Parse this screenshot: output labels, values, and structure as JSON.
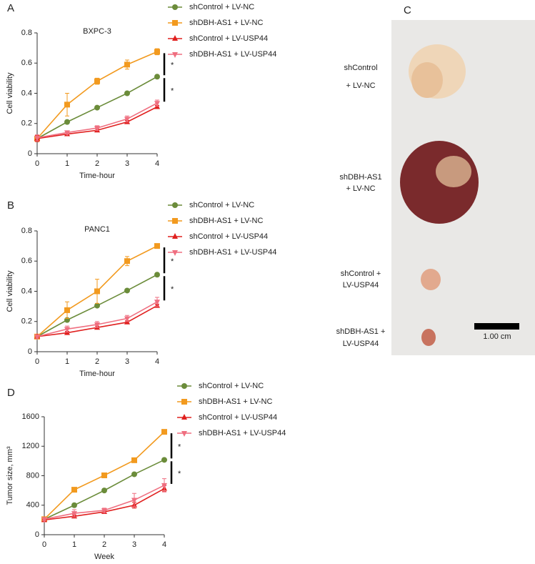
{
  "chart_data": [
    {
      "type": "line",
      "label": "A",
      "title": "BXPC-3",
      "xlabel": "Time-hour",
      "ylabel": "Cell viability",
      "x": [
        0,
        1,
        2,
        3,
        4
      ],
      "xlim": [
        0,
        4
      ],
      "xticks": [
        0,
        1,
        2,
        3,
        4
      ],
      "ylim": [
        0,
        0.8
      ],
      "yticks": [
        0,
        0.2,
        0.4,
        0.6,
        0.8
      ],
      "series": [
        {
          "name": "shControl + LV-NC",
          "color": "#6b8c3a",
          "marker": "circle",
          "values": [
            0.1,
            0.21,
            0.305,
            0.4,
            0.51
          ],
          "errors": [
            0.01,
            0.01,
            0.01,
            0.01,
            0.01
          ]
        },
        {
          "name": "shDBH-AS1 + LV-NC",
          "color": "#f29a1f",
          "marker": "square",
          "values": [
            0.1,
            0.325,
            0.48,
            0.59,
            0.675
          ],
          "errors": [
            0.02,
            0.075,
            0.02,
            0.03,
            0.02
          ]
        },
        {
          "name": "shControl + LV-USP44",
          "color": "#e0201f",
          "marker": "triangle-up",
          "values": [
            0.1,
            0.13,
            0.155,
            0.21,
            0.31
          ],
          "errors": [
            0.02,
            0.01,
            0.01,
            0.01,
            0.01
          ]
        },
        {
          "name": "shDBH-AS1 + LV-USP44",
          "color": "#ef6f80",
          "marker": "triangle-down",
          "values": [
            0.105,
            0.14,
            0.17,
            0.23,
            0.335
          ],
          "errors": [
            0.02,
            0.01,
            0.015,
            0.02,
            0.02
          ]
        }
      ],
      "annotations": [
        "*",
        "*"
      ]
    },
    {
      "type": "line",
      "label": "B",
      "title": "PANC1",
      "xlabel": "Time-hour",
      "ylabel": "Cell viability",
      "x": [
        0,
        1,
        2,
        3,
        4
      ],
      "xlim": [
        0,
        4
      ],
      "xticks": [
        0,
        1,
        2,
        3,
        4
      ],
      "ylim": [
        0,
        0.8
      ],
      "yticks": [
        0,
        0.2,
        0.4,
        0.6,
        0.8
      ],
      "series": [
        {
          "name": "shControl + LV-NC",
          "color": "#6b8c3a",
          "marker": "circle",
          "values": [
            0.1,
            0.21,
            0.305,
            0.405,
            0.51
          ],
          "errors": [
            0.01,
            0.01,
            0.01,
            0.01,
            0.01
          ]
        },
        {
          "name": "shDBH-AS1 + LV-NC",
          "color": "#f29a1f",
          "marker": "square",
          "values": [
            0.1,
            0.275,
            0.4,
            0.6,
            0.7
          ],
          "errors": [
            0.01,
            0.055,
            0.08,
            0.03,
            0.01
          ]
        },
        {
          "name": "shControl + LV-USP44",
          "color": "#e0201f",
          "marker": "triangle-up",
          "values": [
            0.1,
            0.125,
            0.16,
            0.195,
            0.305
          ],
          "errors": [
            0.01,
            0.01,
            0.01,
            0.01,
            0.01
          ]
        },
        {
          "name": "shDBH-AS1 + LV-USP44",
          "color": "#ef6f80",
          "marker": "triangle-down",
          "values": [
            0.1,
            0.15,
            0.18,
            0.22,
            0.33
          ],
          "errors": [
            0.01,
            0.02,
            0.02,
            0.02,
            0.03
          ]
        }
      ],
      "annotations": [
        "*",
        "*"
      ]
    },
    {
      "type": "line",
      "label": "D",
      "xlabel": "Week",
      "ylabel": "Tumor size, mm³",
      "x": [
        0,
        1,
        2,
        3,
        4
      ],
      "xlim": [
        0,
        4
      ],
      "xticks": [
        0,
        1,
        2,
        3,
        4
      ],
      "ylim": [
        0,
        1600
      ],
      "yticks": [
        0,
        400,
        800,
        1200,
        1600
      ],
      "series": [
        {
          "name": "shControl + LV-NC",
          "color": "#6b8c3a",
          "marker": "circle",
          "values": [
            210,
            400,
            600,
            820,
            1015
          ],
          "errors": [
            10,
            10,
            10,
            10,
            10
          ]
        },
        {
          "name": "shDBH-AS1 + LV-NC",
          "color": "#f29a1f",
          "marker": "square",
          "values": [
            210,
            610,
            805,
            1010,
            1395
          ],
          "errors": [
            10,
            10,
            10,
            10,
            10
          ]
        },
        {
          "name": "shControl + LV-USP44",
          "color": "#e0201f",
          "marker": "triangle-up",
          "values": [
            200,
            250,
            310,
            400,
            625
          ],
          "errors": [
            10,
            20,
            20,
            40,
            40
          ]
        },
        {
          "name": "shDBH-AS1 + LV-USP44",
          "color": "#ef6f80",
          "marker": "triangle-down",
          "values": [
            210,
            290,
            330,
            470,
            670
          ],
          "errors": [
            20,
            50,
            30,
            90,
            90
          ]
        }
      ],
      "annotations": [
        "*",
        "*"
      ]
    }
  ],
  "photo": {
    "label": "C",
    "groups": [
      [
        "shControl",
        "+ LV-NC"
      ],
      [
        "shDBH-AS1",
        "+ LV-NC"
      ],
      [
        "shControl +",
        "LV-USP44"
      ],
      [
        "shDBH-AS1 +",
        "LV-USP44"
      ]
    ],
    "scale_bar": "1.00 cm"
  }
}
